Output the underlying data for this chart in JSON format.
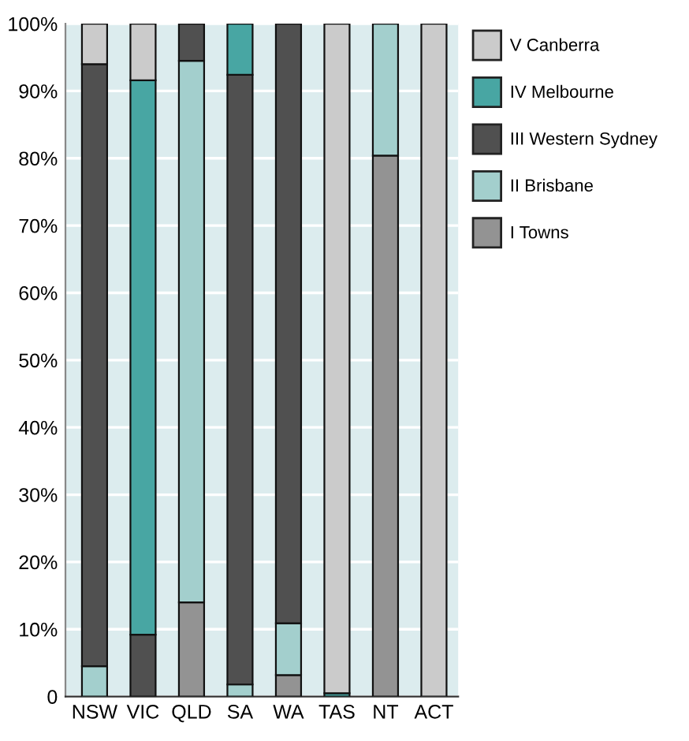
{
  "chart_data": {
    "type": "bar",
    "stacked": true,
    "categories": [
      "NSW",
      "VIC",
      "QLD",
      "SA",
      "WA",
      "TAS",
      "NT",
      "ACT"
    ],
    "series": [
      {
        "name": "I Towns",
        "color": "#939393",
        "values": [
          0,
          0,
          14,
          0,
          3.2,
          0,
          80.4,
          0
        ]
      },
      {
        "name": "II Brisbane",
        "color": "#a3cfcd",
        "values": [
          4.5,
          0,
          80.5,
          1.8,
          7.7,
          0,
          19.6,
          0
        ]
      },
      {
        "name": "III Western Sydney",
        "color": "#505050",
        "values": [
          89.5,
          9.2,
          5.5,
          90.6,
          89.1,
          0,
          0,
          0
        ]
      },
      {
        "name": "IV Melbourne",
        "color": "#48a6a3",
        "values": [
          0,
          82.4,
          0,
          7.6,
          0,
          0.5,
          0,
          0
        ]
      },
      {
        "name": "V Canberra",
        "color": "#cbcbcb",
        "values": [
          6,
          8.4,
          0,
          0,
          0,
          99.5,
          0,
          100
        ]
      }
    ],
    "ylim": [
      0,
      100
    ],
    "yticks": [
      {
        "value": 0,
        "label": "0"
      },
      {
        "value": 10,
        "label": "10%"
      },
      {
        "value": 20,
        "label": "20%"
      },
      {
        "value": 30,
        "label": "30%"
      },
      {
        "value": 40,
        "label": "40%"
      },
      {
        "value": 50,
        "label": "50%"
      },
      {
        "value": 60,
        "label": "60%"
      },
      {
        "value": 70,
        "label": "70%"
      },
      {
        "value": 80,
        "label": "80%"
      },
      {
        "value": 90,
        "label": "90%"
      },
      {
        "value": 100,
        "label": "100%"
      }
    ],
    "grid": "y",
    "legend": "right"
  }
}
